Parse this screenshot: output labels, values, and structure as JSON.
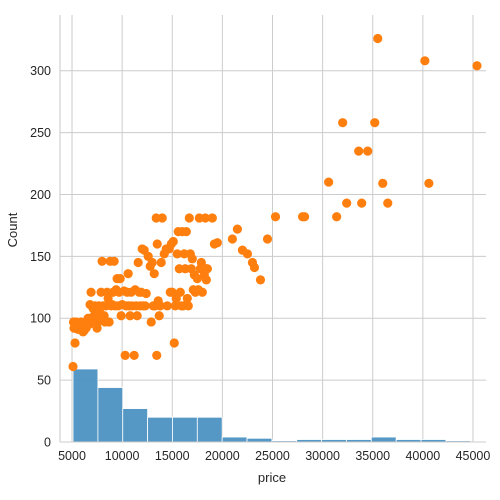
{
  "chart_data": {
    "type": "histogram+scatter",
    "xlabel": "price",
    "ylabel": "Count",
    "xlim": [
      3800,
      46300
    ],
    "ylim": [
      0,
      345
    ],
    "x_ticks": [
      5000,
      10000,
      15000,
      20000,
      25000,
      30000,
      35000,
      40000,
      45000
    ],
    "y_ticks": [
      0,
      50,
      100,
      150,
      200,
      250,
      300
    ],
    "grid": true,
    "histogram": {
      "color": "#4C92C3",
      "bins": [
        {
          "x0": 5100,
          "x1": 7580,
          "count": 59
        },
        {
          "x0": 7580,
          "x1": 10060,
          "count": 44
        },
        {
          "x0": 10060,
          "x1": 12540,
          "count": 27
        },
        {
          "x0": 12540,
          "x1": 15020,
          "count": 20
        },
        {
          "x0": 15020,
          "x1": 17500,
          "count": 20
        },
        {
          "x0": 17500,
          "x1": 19980,
          "count": 20
        },
        {
          "x0": 19980,
          "x1": 22460,
          "count": 4
        },
        {
          "x0": 22460,
          "x1": 24940,
          "count": 3
        },
        {
          "x0": 24940,
          "x1": 27420,
          "count": 1
        },
        {
          "x0": 27420,
          "x1": 29900,
          "count": 2
        },
        {
          "x0": 29900,
          "x1": 32380,
          "count": 2
        },
        {
          "x0": 32380,
          "x1": 34860,
          "count": 2
        },
        {
          "x0": 34860,
          "x1": 37340,
          "count": 4
        },
        {
          "x0": 37340,
          "x1": 39820,
          "count": 2
        },
        {
          "x0": 39820,
          "x1": 42300,
          "count": 2
        },
        {
          "x0": 42300,
          "x1": 44780,
          "count": 1
        }
      ]
    },
    "scatter": {
      "color": "#FF7F0E",
      "points": [
        [
          5100,
          61
        ],
        [
          5150,
          97
        ],
        [
          5200,
          92
        ],
        [
          5300,
          80
        ],
        [
          5400,
          97
        ],
        [
          5600,
          91
        ],
        [
          5700,
          93
        ],
        [
          5800,
          92
        ],
        [
          5900,
          97
        ],
        [
          6000,
          92
        ],
        [
          6100,
          89
        ],
        [
          6200,
          90
        ],
        [
          6400,
          92
        ],
        [
          6500,
          94
        ],
        [
          6600,
          100
        ],
        [
          6700,
          95
        ],
        [
          6800,
          111
        ],
        [
          6900,
          121
        ],
        [
          7000,
          98
        ],
        [
          7100,
          108
        ],
        [
          7200,
          102
        ],
        [
          7300,
          110
        ],
        [
          7400,
          97
        ],
        [
          7500,
          92
        ],
        [
          7600,
          97
        ],
        [
          7700,
          110
        ],
        [
          7800,
          104
        ],
        [
          7900,
          121
        ],
        [
          8000,
          146
        ],
        [
          8100,
          110
        ],
        [
          8200,
          102
        ],
        [
          8300,
          97
        ],
        [
          8400,
          110
        ],
        [
          8500,
          121
        ],
        [
          8600,
          116
        ],
        [
          8700,
          97
        ],
        [
          8800,
          146
        ],
        [
          8900,
          110
        ],
        [
          9000,
          111
        ],
        [
          9100,
          121
        ],
        [
          9200,
          146
        ],
        [
          9300,
          110
        ],
        [
          9400,
          123
        ],
        [
          9500,
          132
        ],
        [
          9600,
          110
        ],
        [
          9700,
          121
        ],
        [
          9800,
          132
        ],
        [
          9900,
          102
        ],
        [
          10000,
          111
        ],
        [
          10200,
          122
        ],
        [
          10300,
          70
        ],
        [
          10400,
          110
        ],
        [
          10500,
          121
        ],
        [
          10600,
          136
        ],
        [
          10700,
          110
        ],
        [
          10800,
          102
        ],
        [
          10900,
          121
        ],
        [
          11000,
          110
        ],
        [
          11200,
          70
        ],
        [
          11300,
          123
        ],
        [
          11400,
          110
        ],
        [
          11500,
          102
        ],
        [
          11600,
          145
        ],
        [
          11700,
          121
        ],
        [
          11800,
          110
        ],
        [
          11900,
          121
        ],
        [
          12000,
          156
        ],
        [
          12100,
          110
        ],
        [
          12200,
          155
        ],
        [
          12300,
          110
        ],
        [
          12400,
          120
        ],
        [
          12600,
          150
        ],
        [
          12800,
          142
        ],
        [
          12900,
          97
        ],
        [
          13000,
          145
        ],
        [
          13100,
          110
        ],
        [
          13200,
          136
        ],
        [
          13300,
          110
        ],
        [
          13400,
          181
        ],
        [
          13450,
          70
        ],
        [
          13500,
          160
        ],
        [
          13600,
          114
        ],
        [
          13700,
          102
        ],
        [
          13800,
          110
        ],
        [
          13900,
          145
        ],
        [
          14000,
          181
        ],
        [
          14200,
          152
        ],
        [
          14400,
          156
        ],
        [
          14500,
          110
        ],
        [
          14700,
          156
        ],
        [
          14800,
          121
        ],
        [
          14900,
          160
        ],
        [
          15000,
          121
        ],
        [
          15100,
          162
        ],
        [
          15200,
          80
        ],
        [
          15300,
          110
        ],
        [
          15400,
          116
        ],
        [
          15500,
          152
        ],
        [
          15600,
          170
        ],
        [
          15700,
          140
        ],
        [
          15800,
          121
        ],
        [
          15900,
          110
        ],
        [
          16000,
          170
        ],
        [
          16100,
          110
        ],
        [
          16200,
          152
        ],
        [
          16300,
          140
        ],
        [
          16400,
          170
        ],
        [
          16500,
          116
        ],
        [
          16600,
          110
        ],
        [
          16700,
          181
        ],
        [
          16800,
          152
        ],
        [
          16900,
          140
        ],
        [
          17000,
          148
        ],
        [
          17100,
          123
        ],
        [
          17200,
          135
        ],
        [
          17300,
          121
        ],
        [
          17500,
          132
        ],
        [
          17600,
          123
        ],
        [
          17700,
          181
        ],
        [
          17800,
          140
        ],
        [
          17900,
          145
        ],
        [
          18000,
          121
        ],
        [
          18100,
          141
        ],
        [
          18200,
          135
        ],
        [
          18300,
          181
        ],
        [
          18400,
          131
        ],
        [
          18500,
          140
        ],
        [
          19000,
          181
        ],
        [
          19200,
          160
        ],
        [
          19500,
          161
        ],
        [
          21000,
          164
        ],
        [
          21500,
          172
        ],
        [
          22000,
          155
        ],
        [
          22500,
          152
        ],
        [
          23000,
          145
        ],
        [
          23200,
          141
        ],
        [
          23800,
          131
        ],
        [
          24500,
          164
        ],
        [
          25300,
          182
        ],
        [
          28000,
          182
        ],
        [
          28200,
          182
        ],
        [
          30600,
          210
        ],
        [
          31400,
          182
        ],
        [
          32000,
          258
        ],
        [
          32400,
          193
        ],
        [
          33600,
          235
        ],
        [
          33900,
          193
        ],
        [
          34500,
          235
        ],
        [
          35200,
          258
        ],
        [
          35500,
          326
        ],
        [
          36000,
          209
        ],
        [
          36500,
          193
        ],
        [
          40200,
          308
        ],
        [
          40600,
          209
        ],
        [
          45400,
          304
        ]
      ]
    }
  }
}
